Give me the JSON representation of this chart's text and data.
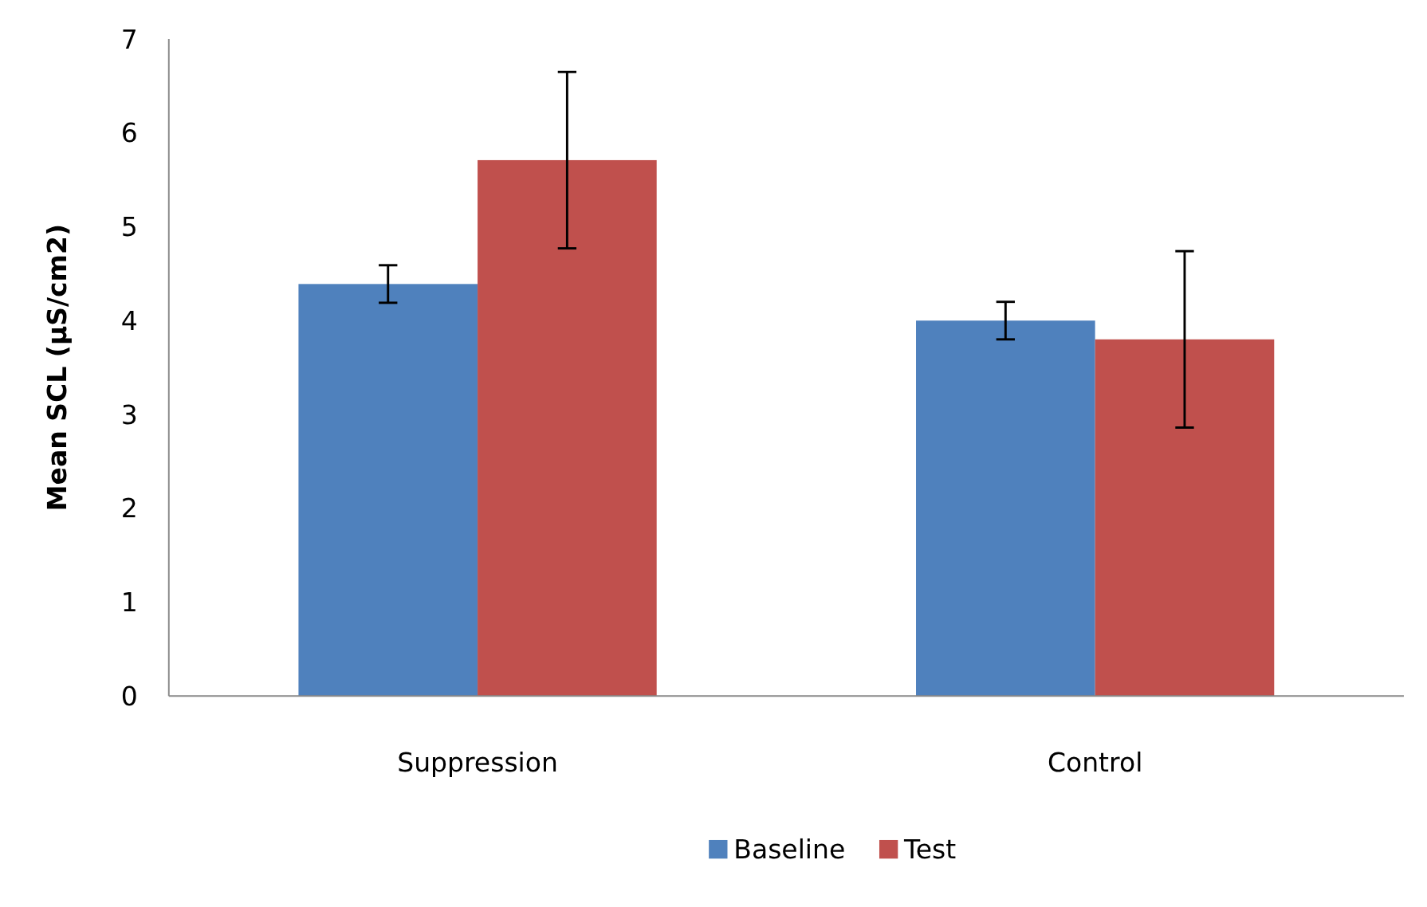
{
  "chart_data": {
    "type": "bar",
    "ylabel": "Mean SCL (µS/cm2)",
    "categories": [
      "Suppression",
      "Control"
    ],
    "series": [
      {
        "name": "Baseline",
        "color": "#4f81bd",
        "values": [
          4.39,
          4.0
        ],
        "errors": [
          0.2,
          0.2
        ]
      },
      {
        "name": "Test",
        "color": "#c0504d",
        "values": [
          5.71,
          3.8
        ],
        "errors": [
          0.94,
          0.94
        ]
      }
    ],
    "ylim": [
      0,
      7
    ],
    "yticks": [
      0,
      1,
      2,
      3,
      4,
      5,
      6,
      7
    ],
    "grid": false,
    "legend": "bottom"
  }
}
